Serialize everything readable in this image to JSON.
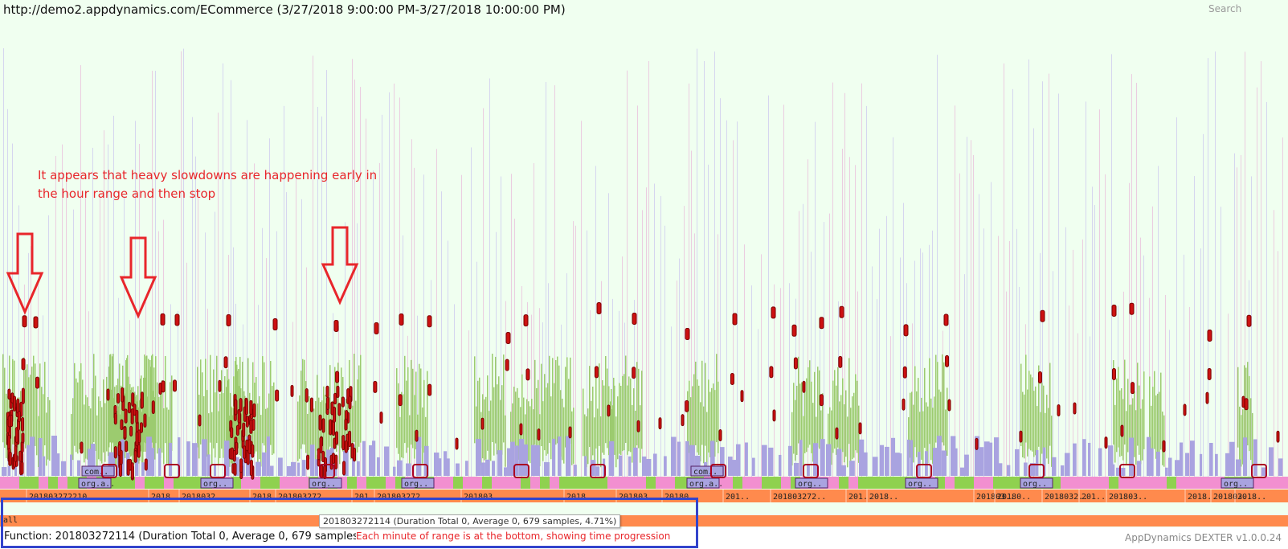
{
  "header": {
    "title": "http://demo2.appdynamics.com/ECommerce (3/27/2018 9:00:00 PM-3/27/2018 10:00:00 PM)",
    "search_label": "Search"
  },
  "annotations": {
    "slowdown_note": "It appears that heavy slowdowns are happening early in the hour range and then stop",
    "time_note": "Each minute of range is at the bottom, showing time progression"
  },
  "root": {
    "label": "all"
  },
  "minute_labels": [
    "201803272210..",
    "2018..",
    "2018032..",
    "2018..",
    "201803272..",
    "201..",
    "201803272..",
    "201803..",
    "2018..",
    "201803..",
    "20180..",
    "201..",
    "201803272..",
    "201..",
    "2018..",
    "201803..",
    "20180..",
    "2018032..",
    "201..",
    "201803..",
    "2018..",
    "201803..",
    "2018..",
    "2018..",
    "2018..",
    "201803272.."
  ],
  "frame_labels": [
    "com..",
    "org.a..",
    "org..",
    "org..",
    "org..",
    "com..",
    "org.a..",
    "org..",
    "org..",
    "org..",
    "org.."
  ],
  "tooltip": "201803272114 (Duration Total 0, Average 0, 679 samples, 4.71%)",
  "footer": {
    "function_text": "Function: 201803272114 (Duration Total 0, Average 0, 679 samples, 4.71%)",
    "brand": "AppDynamics DEXTER v1.0.0.24"
  },
  "colors": {
    "background": "#f0fff0",
    "root_bar": "#ff8a4d",
    "annotation": "#e8262b",
    "highlight_box": "#3344cc",
    "spike_red": "#cc1111",
    "stack_green": "#9ccb6f",
    "stack_purple": "#a9a3e0",
    "stack_pink": "#f28fd0",
    "stack_lime": "#8fd14f"
  }
}
